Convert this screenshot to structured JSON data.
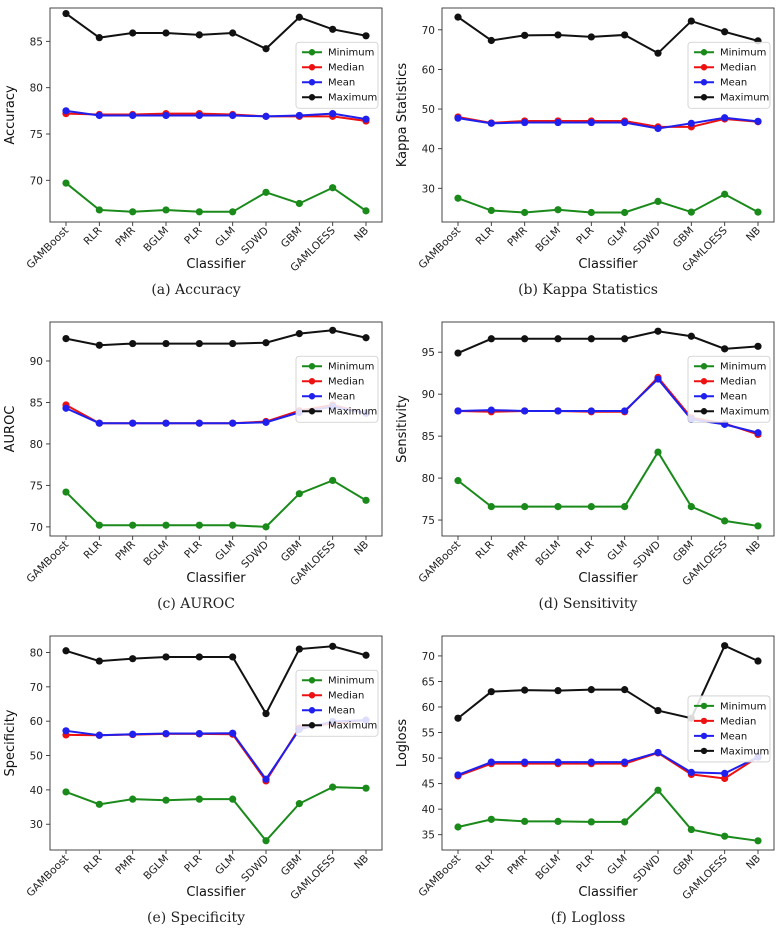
{
  "chart_data": [
    {
      "id": "a",
      "type": "line",
      "caption": "(a) Accuracy",
      "xlabel": "Classifier",
      "ylabel": "Accuracy",
      "categories": [
        "GAMBoost",
        "RLR",
        "PMR",
        "BGLM",
        "PLR",
        "GLM",
        "SDWD",
        "GBM",
        "GAMLOESS",
        "NB"
      ],
      "ylim": [
        65.5,
        88.6
      ],
      "yticks": [
        70,
        75,
        80,
        85
      ],
      "legend": "right",
      "series": [
        {
          "name": "Minimum",
          "color": "#1a8a1a",
          "values": [
            69.7,
            66.8,
            66.6,
            66.8,
            66.6,
            66.6,
            68.7,
            67.5,
            69.2,
            66.7
          ]
        },
        {
          "name": "Median",
          "color": "#ee1111",
          "values": [
            77.2,
            77.1,
            77.1,
            77.2,
            77.2,
            77.1,
            76.9,
            76.9,
            76.9,
            76.4
          ]
        },
        {
          "name": "Mean",
          "color": "#1f1fee",
          "values": [
            77.5,
            77.0,
            77.0,
            77.0,
            77.0,
            77.0,
            76.9,
            77.0,
            77.2,
            76.6
          ]
        },
        {
          "name": "Maximum",
          "color": "#111111",
          "values": [
            88.0,
            85.4,
            85.9,
            85.9,
            85.7,
            85.9,
            84.2,
            87.6,
            86.3,
            85.6
          ]
        }
      ]
    },
    {
      "id": "b",
      "type": "line",
      "caption": "(b) Kappa Statistics",
      "xlabel": "Classifier",
      "ylabel": "Kappa Statistics",
      "categories": [
        "GAMBoost",
        "RLR",
        "PMR",
        "BGLM",
        "PLR",
        "GLM",
        "SDWD",
        "GBM",
        "GAMLOESS",
        "NB"
      ],
      "ylim": [
        21.5,
        75.5
      ],
      "yticks": [
        30,
        40,
        50,
        60,
        70
      ],
      "legend": "right",
      "series": [
        {
          "name": "Minimum",
          "color": "#1a8a1a",
          "values": [
            27.5,
            24.4,
            23.9,
            24.6,
            23.9,
            23.9,
            26.7,
            24.0,
            28.5,
            24.0
          ]
        },
        {
          "name": "Median",
          "color": "#ee1111",
          "values": [
            48.0,
            46.5,
            47.0,
            47.0,
            47.0,
            47.0,
            45.5,
            45.5,
            47.5,
            46.8
          ]
        },
        {
          "name": "Mean",
          "color": "#1f1fee",
          "values": [
            47.7,
            46.4,
            46.6,
            46.6,
            46.6,
            46.6,
            45.1,
            46.4,
            47.8,
            46.9
          ]
        },
        {
          "name": "Maximum",
          "color": "#111111",
          "values": [
            73.2,
            67.3,
            68.6,
            68.7,
            68.2,
            68.7,
            64.1,
            72.2,
            69.5,
            67.2
          ]
        }
      ]
    },
    {
      "id": "c",
      "type": "line",
      "caption": "(c) AUROC",
      "xlabel": "Classifier",
      "ylabel": "AUROC",
      "categories": [
        "GAMBoost",
        "RLR",
        "PMR",
        "BGLM",
        "PLR",
        "GLM",
        "SDWD",
        "GBM",
        "GAMLOESS",
        "NB"
      ],
      "ylim": [
        68.9,
        94.7
      ],
      "yticks": [
        70,
        75,
        80,
        85,
        90
      ],
      "legend": "right",
      "series": [
        {
          "name": "Minimum",
          "color": "#1a8a1a",
          "values": [
            74.2,
            70.2,
            70.2,
            70.2,
            70.2,
            70.2,
            70.0,
            74.0,
            75.6,
            73.2
          ]
        },
        {
          "name": "Median",
          "color": "#ee1111",
          "values": [
            84.7,
            82.5,
            82.5,
            82.5,
            82.5,
            82.5,
            82.7,
            84.0,
            84.7,
            83.7
          ]
        },
        {
          "name": "Mean",
          "color": "#1f1fee",
          "values": [
            84.3,
            82.5,
            82.5,
            82.5,
            82.5,
            82.5,
            82.6,
            83.8,
            84.5,
            83.7
          ]
        },
        {
          "name": "Maximum",
          "color": "#111111",
          "values": [
            92.7,
            91.9,
            92.1,
            92.1,
            92.1,
            92.1,
            92.2,
            93.3,
            93.7,
            92.8
          ]
        }
      ]
    },
    {
      "id": "d",
      "type": "line",
      "caption": "(d) Sensitivity",
      "xlabel": "Classifier",
      "ylabel": "Sensitivity",
      "categories": [
        "GAMBoost",
        "RLR",
        "PMR",
        "BGLM",
        "PLR",
        "GLM",
        "SDWD",
        "GBM",
        "GAMLOESS",
        "NB"
      ],
      "ylim": [
        73.1,
        98.6
      ],
      "yticks": [
        75,
        80,
        85,
        90,
        95
      ],
      "legend": "right",
      "series": [
        {
          "name": "Minimum",
          "color": "#1a8a1a",
          "values": [
            79.7,
            76.6,
            76.6,
            76.6,
            76.6,
            76.6,
            83.1,
            76.6,
            74.9,
            74.3
          ]
        },
        {
          "name": "Median",
          "color": "#ee1111",
          "values": [
            88.0,
            87.9,
            88.0,
            88.0,
            87.9,
            87.9,
            92.0,
            87.2,
            86.5,
            85.2
          ]
        },
        {
          "name": "Mean",
          "color": "#1f1fee",
          "values": [
            88.0,
            88.1,
            88.0,
            88.0,
            88.0,
            88.0,
            91.8,
            87.0,
            86.4,
            85.4
          ]
        },
        {
          "name": "Maximum",
          "color": "#111111",
          "values": [
            94.9,
            96.6,
            96.6,
            96.6,
            96.6,
            96.6,
            97.5,
            96.9,
            95.4,
            95.7
          ]
        }
      ]
    },
    {
      "id": "e",
      "type": "line",
      "caption": "(e) Specificity",
      "xlabel": "Classifier",
      "ylabel": "Specificity",
      "categories": [
        "GAMBoost",
        "RLR",
        "PMR",
        "BGLM",
        "PLR",
        "GLM",
        "SDWD",
        "GBM",
        "GAMLOESS",
        "NB"
      ],
      "ylim": [
        22.5,
        84.8
      ],
      "yticks": [
        30,
        40,
        50,
        60,
        70,
        80
      ],
      "legend": "right",
      "series": [
        {
          "name": "Minimum",
          "color": "#1a8a1a",
          "values": [
            39.4,
            35.8,
            37.3,
            37.0,
            37.3,
            37.3,
            25.2,
            36.0,
            40.8,
            40.5
          ]
        },
        {
          "name": "Median",
          "color": "#ee1111",
          "values": [
            56.0,
            55.9,
            56.1,
            56.3,
            56.3,
            56.2,
            42.6,
            58.0,
            59.3,
            60.3
          ]
        },
        {
          "name": "Mean",
          "color": "#1f1fee",
          "values": [
            57.2,
            55.9,
            56.2,
            56.4,
            56.4,
            56.5,
            43.1,
            57.6,
            59.9,
            60.3
          ]
        },
        {
          "name": "Maximum",
          "color": "#111111",
          "values": [
            80.5,
            77.5,
            78.2,
            78.7,
            78.7,
            78.7,
            62.2,
            81.0,
            81.8,
            79.2
          ]
        }
      ]
    },
    {
      "id": "f",
      "type": "line",
      "caption": "(f) Logloss",
      "xlabel": "Classifier",
      "ylabel": "Logloss",
      "categories": [
        "GAMBoost",
        "RLR",
        "PMR",
        "BGLM",
        "PLR",
        "GLM",
        "SDWD",
        "GBM",
        "GAMLOESS",
        "NB"
      ],
      "ylim": [
        32.0,
        73.9
      ],
      "yticks": [
        35,
        40,
        45,
        50,
        55,
        60,
        65,
        70
      ],
      "legend": "center-right",
      "series": [
        {
          "name": "Minimum",
          "color": "#1a8a1a",
          "values": [
            36.5,
            38.0,
            37.6,
            37.6,
            37.5,
            37.5,
            43.7,
            36.0,
            34.7,
            33.8
          ]
        },
        {
          "name": "Median",
          "color": "#ee1111",
          "values": [
            46.5,
            48.9,
            48.9,
            48.9,
            48.9,
            48.9,
            51.0,
            46.8,
            46.0,
            50.2
          ]
        },
        {
          "name": "Mean",
          "color": "#1f1fee",
          "values": [
            46.7,
            49.2,
            49.2,
            49.2,
            49.2,
            49.2,
            51.1,
            47.2,
            47.0,
            50.2
          ]
        },
        {
          "name": "Maximum",
          "color": "#111111",
          "values": [
            57.8,
            63.0,
            63.3,
            63.2,
            63.4,
            63.4,
            59.3,
            57.8,
            72.0,
            69.0
          ]
        }
      ]
    }
  ]
}
